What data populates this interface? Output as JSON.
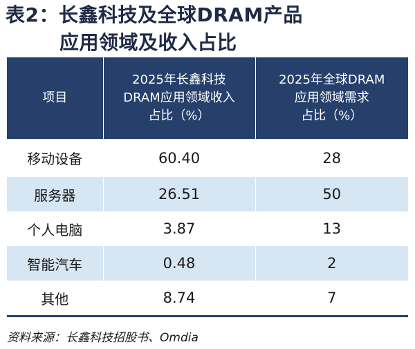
{
  "title": {
    "line1": "表2：长鑫科技及全球DRAM产品",
    "line2": "应用领域及收入占比"
  },
  "table": {
    "headers": [
      [
        "项目"
      ],
      [
        "2025年长鑫科技",
        "DRAM应用领域收入",
        "占比（%）"
      ],
      [
        "2025年全球DRAM",
        "应用领域需求",
        "占比（%）"
      ]
    ],
    "rows": [
      [
        "移动设备",
        "60.40",
        "28"
      ],
      [
        "服务器",
        "26.51",
        "50"
      ],
      [
        "个人电脑",
        "3.87",
        "13"
      ],
      [
        "智能汽车",
        "0.48",
        "2"
      ],
      [
        "其他",
        "8.74",
        "7"
      ]
    ]
  },
  "source": "资料来源：长鑫科技招股书、Omdia"
}
